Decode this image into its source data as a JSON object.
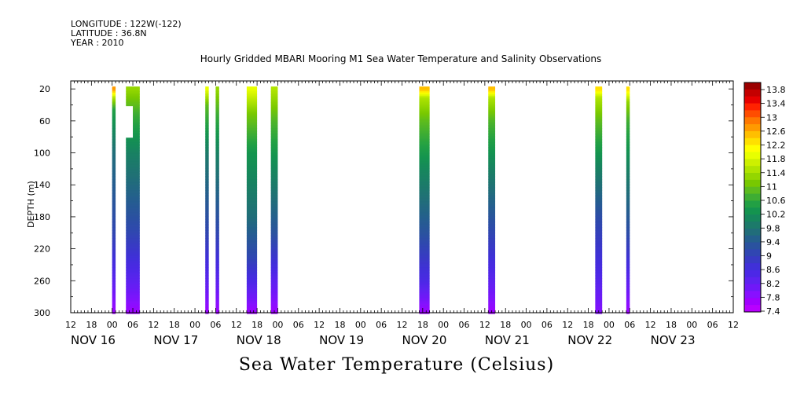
{
  "meta": {
    "longitude": "LONGITUDE : 122W(-122)",
    "latitude": "LATITUDE : 36.8N",
    "year": "YEAR : 2010"
  },
  "title": "Hourly Gridded MBARI Mooring M1 Sea Water Temperature and Salinity Observations",
  "caption": "Sea Water Temperature (Celsius)",
  "chart_data": {
    "type": "heatmap",
    "title": "Hourly Gridded MBARI Mooring M1 Sea Water Temperature and Salinity Observations",
    "xlabel": "",
    "ylabel": "DEPTH (m)",
    "colorbar_label": "Sea Water Temperature (Celsius)",
    "x_unit": "hours since NOV 16 00:00",
    "xlim": [
      -12,
      180
    ],
    "ylim": [
      300,
      10
    ],
    "y_inverted": true,
    "hour_tick_labels": [
      "12",
      "18",
      "00",
      "06",
      "12",
      "18",
      "00",
      "06",
      "12",
      "18",
      "00",
      "06",
      "12",
      "18",
      "00",
      "06",
      "12",
      "18",
      "00",
      "06",
      "12",
      "18",
      "00",
      "06",
      "12",
      "18",
      "00",
      "06",
      "12",
      "18",
      "00",
      "06",
      "12"
    ],
    "date_labels": [
      {
        "label": "NOV 16",
        "hour": -12
      },
      {
        "label": "NOV 17",
        "hour": 12
      },
      {
        "label": "NOV 18",
        "hour": 36
      },
      {
        "label": "NOV 19",
        "hour": 60
      },
      {
        "label": "NOV 20",
        "hour": 84
      },
      {
        "label": "NOV 21",
        "hour": 108
      },
      {
        "label": "NOV 22",
        "hour": 132
      },
      {
        "label": "NOV 23",
        "hour": 156
      }
    ],
    "y_ticks": [
      20,
      60,
      100,
      140,
      180,
      220,
      260,
      300
    ],
    "colorbar_levels": [
      "13.8",
      "13.4",
      "13",
      "12.6",
      "12.2",
      "11.8",
      "11.4",
      "11",
      "10.6",
      "10.2",
      "9.8",
      "9.4",
      "9",
      "8.6",
      "8.2",
      "7.8",
      "7.4"
    ],
    "colorbar_colors": [
      "#9b0000",
      "#c40000",
      "#e60000",
      "#ff2200",
      "#ff4d00",
      "#ff7800",
      "#ff9a00",
      "#ffbf00",
      "#ffe000",
      "#ffff00",
      "#e8ff00",
      "#cdf000",
      "#b0e400",
      "#94d600",
      "#78c800",
      "#5cbb1e",
      "#3ead33",
      "#22a044",
      "#14944f",
      "#16875c",
      "#1c7a6a",
      "#216d7a",
      "#245f8d",
      "#2a529f",
      "#3046b2",
      "#383ac4",
      "#4030d8",
      "#4c28e6",
      "#5e22f0",
      "#7018f8",
      "#8810ff",
      "#a000ff",
      "#b800ff"
    ],
    "segments": [
      {
        "start": 0.0,
        "end": 1.0,
        "top_depth": 20,
        "bottom_depth": 300,
        "profile": [
          [
            20,
            12.6
          ],
          [
            30,
            11.4
          ],
          [
            45,
            10.4
          ],
          [
            100,
            9.6
          ],
          [
            200,
            9.0
          ],
          [
            260,
            8.2
          ],
          [
            300,
            7.6
          ]
        ]
      },
      {
        "start": 4.0,
        "end": 8.0,
        "top_depth": 20,
        "bottom_depth": 300,
        "gap": [
          40,
          80,
          6.0,
          8.0
        ],
        "profile": [
          [
            20,
            11.2
          ],
          [
            50,
            10.6
          ],
          [
            100,
            9.9
          ],
          [
            200,
            9.0
          ],
          [
            260,
            8.2
          ],
          [
            300,
            7.6
          ]
        ]
      },
      {
        "start": 27.0,
        "end": 28.0,
        "top_depth": 20,
        "bottom_depth": 300,
        "profile": [
          [
            20,
            11.8
          ],
          [
            40,
            10.8
          ],
          [
            100,
            9.8
          ],
          [
            200,
            9.0
          ],
          [
            260,
            8.2
          ],
          [
            300,
            7.6
          ]
        ]
      },
      {
        "start": 30.0,
        "end": 31.0,
        "top_depth": 20,
        "bottom_depth": 300,
        "profile": [
          [
            20,
            11.2
          ],
          [
            50,
            10.6
          ],
          [
            100,
            9.9
          ],
          [
            200,
            9.0
          ],
          [
            260,
            8.2
          ],
          [
            300,
            7.6
          ]
        ]
      },
      {
        "start": 39.0,
        "end": 42.0,
        "top_depth": 20,
        "bottom_depth": 300,
        "profile": [
          [
            20,
            11.8
          ],
          [
            50,
            11.0
          ],
          [
            100,
            10.2
          ],
          [
            180,
            9.6
          ],
          [
            230,
            9.0
          ],
          [
            270,
            8.2
          ],
          [
            300,
            7.6
          ]
        ]
      },
      {
        "start": 46.0,
        "end": 48.0,
        "top_depth": 20,
        "bottom_depth": 300,
        "profile": [
          [
            20,
            11.4
          ],
          [
            60,
            10.7
          ],
          [
            120,
            10.0
          ],
          [
            200,
            9.2
          ],
          [
            260,
            8.2
          ],
          [
            300,
            7.6
          ]
        ]
      },
      {
        "start": 89.0,
        "end": 92.0,
        "top_depth": 20,
        "bottom_depth": 300,
        "profile": [
          [
            20,
            12.4
          ],
          [
            30,
            11.4
          ],
          [
            60,
            10.8
          ],
          [
            120,
            10.0
          ],
          [
            200,
            9.2
          ],
          [
            260,
            8.4
          ],
          [
            300,
            7.6
          ]
        ]
      },
      {
        "start": 109.0,
        "end": 111.0,
        "top_depth": 20,
        "bottom_depth": 300,
        "profile": [
          [
            20,
            12.4
          ],
          [
            30,
            11.4
          ],
          [
            60,
            10.7
          ],
          [
            120,
            9.9
          ],
          [
            200,
            9.0
          ],
          [
            260,
            8.2
          ],
          [
            300,
            7.6
          ]
        ]
      },
      {
        "start": 140.0,
        "end": 142.0,
        "top_depth": 20,
        "bottom_depth": 300,
        "profile": [
          [
            20,
            12.2
          ],
          [
            30,
            11.4
          ],
          [
            60,
            10.8
          ],
          [
            120,
            9.9
          ],
          [
            180,
            9.1
          ],
          [
            250,
            8.4
          ],
          [
            300,
            7.8
          ]
        ]
      },
      {
        "start": 149.0,
        "end": 150.0,
        "top_depth": 20,
        "bottom_depth": 300,
        "profile": [
          [
            20,
            12.2
          ],
          [
            35,
            11.2
          ],
          [
            60,
            10.6
          ],
          [
            120,
            9.9
          ],
          [
            200,
            9.1
          ],
          [
            260,
            8.2
          ],
          [
            300,
            7.6
          ]
        ]
      }
    ]
  }
}
